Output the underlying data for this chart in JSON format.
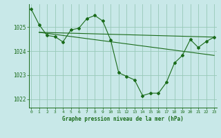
{
  "bg_color": "#c8e8e8",
  "line_color": "#1a6b1a",
  "grid_color": "#98c8b8",
  "ylabel_ticks": [
    1022,
    1023,
    1024,
    1025
  ],
  "xlabel_ticks": [
    0,
    1,
    2,
    3,
    4,
    5,
    6,
    7,
    8,
    9,
    10,
    11,
    12,
    13,
    14,
    15,
    16,
    17,
    18,
    19,
    20,
    21,
    22,
    23
  ],
  "xlabel": "Graphe pression niveau de la mer (hPa)",
  "series_main_x": [
    0,
    1,
    2,
    3,
    4,
    5,
    6,
    7,
    8,
    9,
    10,
    11,
    12,
    13,
    14,
    15,
    16,
    17,
    18,
    19,
    20,
    21,
    22,
    23
  ],
  "series_main_y": [
    1025.75,
    1025.1,
    1024.65,
    1024.6,
    1024.38,
    1024.88,
    1024.95,
    1025.35,
    1025.48,
    1025.25,
    1024.45,
    1023.1,
    1022.95,
    1022.8,
    1022.15,
    1022.25,
    1022.25,
    1022.7,
    1023.5,
    1023.82,
    1024.48,
    1024.15,
    1024.4,
    1024.58
  ],
  "trend1_x": [
    1,
    23
  ],
  "trend1_y": [
    1024.78,
    1024.58
  ],
  "trend2_x": [
    1,
    23
  ],
  "trend2_y": [
    1024.78,
    1023.82
  ],
  "xlim": [
    -0.3,
    23.3
  ],
  "ylim": [
    1021.65,
    1025.95
  ]
}
